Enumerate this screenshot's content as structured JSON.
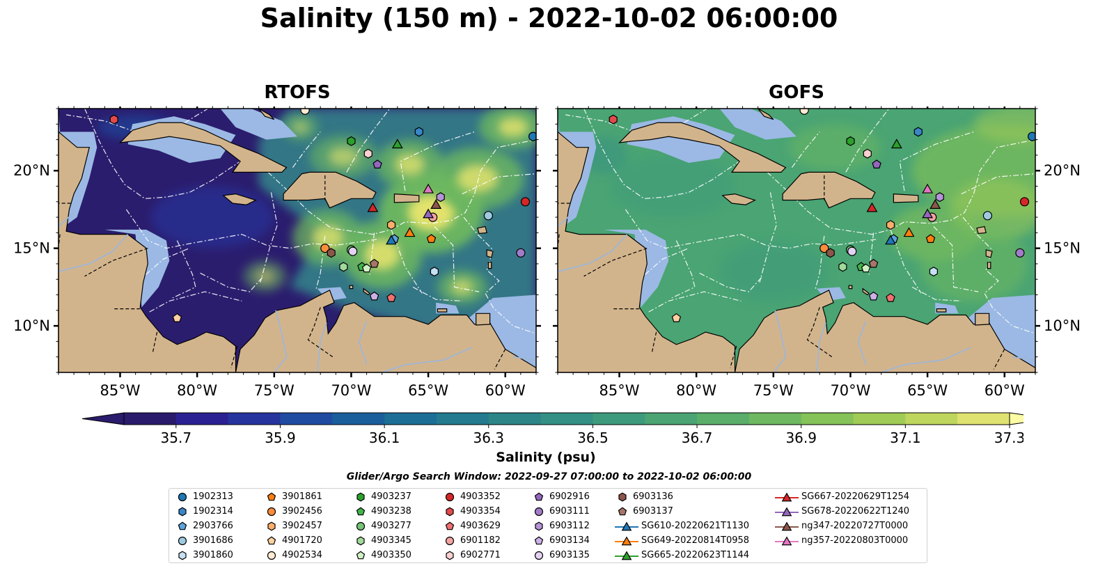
{
  "title": "Salinity (150 m) - 2022-10-02 06:00:00",
  "maps": [
    {
      "id": "rtofs",
      "title": "RTOFS",
      "show_left_labels": true,
      "show_right_labels": false
    },
    {
      "id": "gofs",
      "title": "GOFS",
      "show_left_labels": false,
      "show_right_labels": true
    }
  ],
  "extent": {
    "lon": [
      -89,
      -58
    ],
    "lat": [
      7,
      24
    ]
  },
  "lon_ticks": [
    -85,
    -80,
    -75,
    -70,
    -65,
    -60
  ],
  "lat_ticks": [
    10,
    15,
    20
  ],
  "lon_tick_labels": [
    "85°W",
    "80°W",
    "75°W",
    "70°W",
    "65°W",
    "60°W"
  ],
  "lat_tick_labels": [
    "10°N",
    "15°N",
    "20°N"
  ],
  "colors": {
    "land": "#d2b48c",
    "shelf": "#9bb9e4",
    "river": "#9fb6d6",
    "eez": "#ffffff",
    "low_sal": "#2b1d6e",
    "mid_sal": "#34868b",
    "high_sal": "#e9e56d"
  },
  "colorbar": {
    "label": "Salinity (psu)",
    "min": 35.7,
    "max": 37.3,
    "step": 0.1,
    "ticks": [
      "35.7",
      "35.9",
      "36.1",
      "36.3",
      "36.5",
      "36.7",
      "36.9",
      "37.1",
      "37.3"
    ],
    "colors": [
      "#2a1b6c",
      "#2b2192",
      "#26349e",
      "#1f4ba1",
      "#1a5f9c",
      "#1d6e96",
      "#247a8e",
      "#2d8588",
      "#348f84",
      "#3e9a7c",
      "#4aa473",
      "#5aae6a",
      "#6db860",
      "#85c257",
      "#a0cb56",
      "#bed65d",
      "#dfe270"
    ]
  },
  "search_window": "Glider/Argo Search Window: 2022-09-27 07:00:00 to 2022-10-02 06:00:00",
  "legend": {
    "columns": [
      [
        {
          "label": "1902313",
          "marker": "circle",
          "color": "#1f77b4"
        },
        {
          "label": "1902314",
          "marker": "hexagon",
          "color": "#3a86c8"
        },
        {
          "label": "2903766",
          "marker": "pentagon",
          "color": "#5ba3dc"
        },
        {
          "label": "3901686",
          "marker": "circle",
          "color": "#9ecae1"
        },
        {
          "label": "3901860",
          "marker": "hexagon",
          "color": "#c6e1f3"
        }
      ],
      [
        {
          "label": "3901861",
          "marker": "pentagon",
          "color": "#ff7f0e"
        },
        {
          "label": "3902456",
          "marker": "circle",
          "color": "#fd8d3c"
        },
        {
          "label": "3902457",
          "marker": "hexagon",
          "color": "#fdae6b"
        },
        {
          "label": "4901720",
          "marker": "pentagon",
          "color": "#fdd0a2"
        },
        {
          "label": "4902534",
          "marker": "circle",
          "color": "#feebd2"
        }
      ],
      [
        {
          "label": "4903237",
          "marker": "hexagon",
          "color": "#2ca02c"
        },
        {
          "label": "4903238",
          "marker": "pentagon",
          "color": "#41b44a"
        },
        {
          "label": "4903277",
          "marker": "circle",
          "color": "#74c476"
        },
        {
          "label": "4903345",
          "marker": "hexagon",
          "color": "#a1d99b"
        },
        {
          "label": "4903350",
          "marker": "pentagon",
          "color": "#d0f0c4"
        }
      ],
      [
        {
          "label": "4903352",
          "marker": "circle",
          "color": "#d62728"
        },
        {
          "label": "4903354",
          "marker": "hexagon",
          "color": "#e34a4a"
        },
        {
          "label": "4903629",
          "marker": "pentagon",
          "color": "#f07070"
        },
        {
          "label": "6901182",
          "marker": "circle",
          "color": "#f4a3a3"
        },
        {
          "label": "6902771",
          "marker": "hexagon",
          "color": "#fbd0d0"
        }
      ],
      [
        {
          "label": "6902916",
          "marker": "pentagon",
          "color": "#9467bd"
        },
        {
          "label": "6903111",
          "marker": "circle",
          "color": "#a27cc8"
        },
        {
          "label": "6903112",
          "marker": "hexagon",
          "color": "#b493d6"
        },
        {
          "label": "6903134",
          "marker": "pentagon",
          "color": "#ccb1e6"
        },
        {
          "label": "6903135",
          "marker": "circle",
          "color": "#e3d2f3"
        }
      ],
      [
        {
          "label": "6903136",
          "marker": "hexagon",
          "color": "#8c564b"
        },
        {
          "label": "6903137",
          "marker": "pentagon",
          "color": "#a8756a"
        },
        {
          "label": "SG610-20220621T1130",
          "marker": "triangle",
          "color": "#1f77b4"
        },
        {
          "label": "SG649-20220814T0958",
          "marker": "triangle",
          "color": "#ff7f0e"
        },
        {
          "label": "SG665-20220623T1144",
          "marker": "triangle",
          "color": "#2ca02c"
        }
      ],
      [
        {
          "label": "SG667-20220629T1254",
          "marker": "triangle",
          "color": "#d62728"
        },
        {
          "label": "SG678-20220622T1240",
          "marker": "triangle",
          "color": "#9467bd"
        },
        {
          "label": "ng347-20220727T0000",
          "marker": "triangle",
          "color": "#8c564b"
        },
        {
          "label": "ng357-20220803T0000",
          "marker": "triangle",
          "color": "#e377c2"
        }
      ]
    ]
  },
  "observations": [
    {
      "id": "1902313",
      "lon": -58.2,
      "lat": 22.2,
      "marker": "circle",
      "color": "#1f77b4"
    },
    {
      "id": "1902314",
      "lon": -65.6,
      "lat": 22.5,
      "marker": "hexagon",
      "color": "#3a86c8"
    },
    {
      "id": "2903766",
      "lon": -67.2,
      "lat": 15.6,
      "marker": "pentagon",
      "color": "#5ba3dc"
    },
    {
      "id": "3901686",
      "lon": -61.1,
      "lat": 17.1,
      "marker": "circle",
      "color": "#9ecae1"
    },
    {
      "id": "3901860",
      "lon": -64.6,
      "lat": 13.5,
      "marker": "hexagon",
      "color": "#c6e1f3"
    },
    {
      "id": "3901861",
      "lon": -64.8,
      "lat": 15.6,
      "marker": "pentagon",
      "color": "#ff7f0e"
    },
    {
      "id": "3902456",
      "lon": -71.7,
      "lat": 15.0,
      "marker": "circle",
      "color": "#fd8d3c"
    },
    {
      "id": "3902457",
      "lon": -67.4,
      "lat": 16.5,
      "marker": "hexagon",
      "color": "#fdae6b"
    },
    {
      "id": "4901720",
      "lon": -81.3,
      "lat": 10.5,
      "marker": "pentagon",
      "color": "#fdd0a2"
    },
    {
      "id": "4902534",
      "lon": -73.0,
      "lat": 23.9,
      "marker": "circle",
      "color": "#feebd2"
    },
    {
      "id": "4903237",
      "lon": -70.0,
      "lat": 21.9,
      "marker": "hexagon",
      "color": "#2ca02c"
    },
    {
      "id": "4903238",
      "lon": -69.3,
      "lat": 13.8,
      "marker": "pentagon",
      "color": "#41b44a"
    },
    {
      "id": "4903277",
      "lon": -70.0,
      "lat": 14.9,
      "marker": "circle",
      "color": "#74c476"
    },
    {
      "id": "4903345",
      "lon": -70.5,
      "lat": 13.8,
      "marker": "hexagon",
      "color": "#a1d99b"
    },
    {
      "id": "4903350",
      "lon": -69.0,
      "lat": 13.7,
      "marker": "pentagon",
      "color": "#d0f0c4"
    },
    {
      "id": "4903352",
      "lon": -58.7,
      "lat": 18.0,
      "marker": "circle",
      "color": "#d62728"
    },
    {
      "id": "4903354",
      "lon": -85.4,
      "lat": 23.3,
      "marker": "hexagon",
      "color": "#e34a4a"
    },
    {
      "id": "4903629",
      "lon": -67.4,
      "lat": 11.8,
      "marker": "pentagon",
      "color": "#f07070"
    },
    {
      "id": "6901182",
      "lon": -64.7,
      "lat": 17.0,
      "marker": "circle",
      "color": "#f4a3a3"
    },
    {
      "id": "6902771",
      "lon": -68.9,
      "lat": 21.1,
      "marker": "hexagon",
      "color": "#fbd0d0"
    },
    {
      "id": "6902916",
      "lon": -68.3,
      "lat": 20.4,
      "marker": "pentagon",
      "color": "#9467bd"
    },
    {
      "id": "6903111",
      "lon": -59.0,
      "lat": 14.7,
      "marker": "circle",
      "color": "#a27cc8"
    },
    {
      "id": "6903112",
      "lon": -64.2,
      "lat": 18.3,
      "marker": "hexagon",
      "color": "#b493d6"
    },
    {
      "id": "6903134",
      "lon": -68.5,
      "lat": 11.9,
      "marker": "pentagon",
      "color": "#ccb1e6"
    },
    {
      "id": "6903135",
      "lon": -69.9,
      "lat": 14.8,
      "marker": "circle",
      "color": "#e3d2f3"
    },
    {
      "id": "6903136",
      "lon": -71.3,
      "lat": 14.7,
      "marker": "hexagon",
      "color": "#8c564b"
    },
    {
      "id": "6903137",
      "lon": -68.5,
      "lat": 14.0,
      "marker": "pentagon",
      "color": "#a8756a"
    },
    {
      "id": "SG610-20220621T1130",
      "lon": -67.4,
      "lat": 15.5,
      "marker": "triangle",
      "color": "#1f77b4"
    },
    {
      "id": "SG649-20220814T0958",
      "lon": -66.2,
      "lat": 16.0,
      "marker": "triangle",
      "color": "#ff7f0e"
    },
    {
      "id": "SG665-20220623T1144",
      "lon": -67.0,
      "lat": 21.7,
      "marker": "triangle",
      "color": "#2ca02c"
    },
    {
      "id": "SG667-20220629T1254",
      "lon": -68.6,
      "lat": 17.6,
      "marker": "triangle",
      "color": "#d62728"
    },
    {
      "id": "SG678-20220622T1240",
      "lon": -65.0,
      "lat": 17.2,
      "marker": "triangle",
      "color": "#9467bd"
    },
    {
      "id": "ng347-20220727T0000",
      "lon": -64.5,
      "lat": 17.8,
      "marker": "triangle",
      "color": "#8c564b"
    },
    {
      "id": "ng357-20220803T0000",
      "lon": -65.0,
      "lat": 18.8,
      "marker": "triangle",
      "color": "#e377c2"
    }
  ]
}
